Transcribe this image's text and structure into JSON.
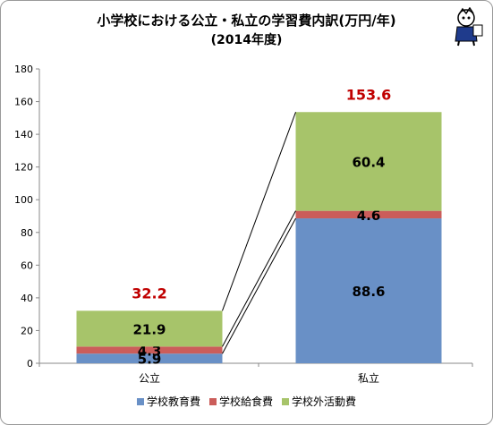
{
  "chart_data": {
    "type": "bar",
    "stacked": true,
    "title": "小学校における公立・私立の学習費内訳(万円/年)",
    "subtitle": "(2014年度)",
    "categories": [
      "公立",
      "私立"
    ],
    "series": [
      {
        "name": "学校教育費",
        "values": [
          5.9,
          88.6
        ],
        "labels": [
          "5.9",
          "88.6"
        ],
        "color": "#6990c6"
      },
      {
        "name": "学校給食費",
        "values": [
          4.3,
          4.6
        ],
        "labels": [
          "4.3",
          "4.6"
        ],
        "color": "#cb5d5a"
      },
      {
        "name": "学校外活動費",
        "values": [
          21.9,
          60.4
        ],
        "labels": [
          "21.9",
          "60.4"
        ],
        "color": "#a7c46a"
      }
    ],
    "totals": [
      "32.2",
      "153.6"
    ],
    "total_color": "#c00000",
    "ylim": [
      0,
      180
    ],
    "yticks": [
      "0",
      "20",
      "40",
      "60",
      "80",
      "100",
      "120",
      "140",
      "160",
      "180"
    ],
    "grid": false,
    "legend_position": "bottom"
  }
}
